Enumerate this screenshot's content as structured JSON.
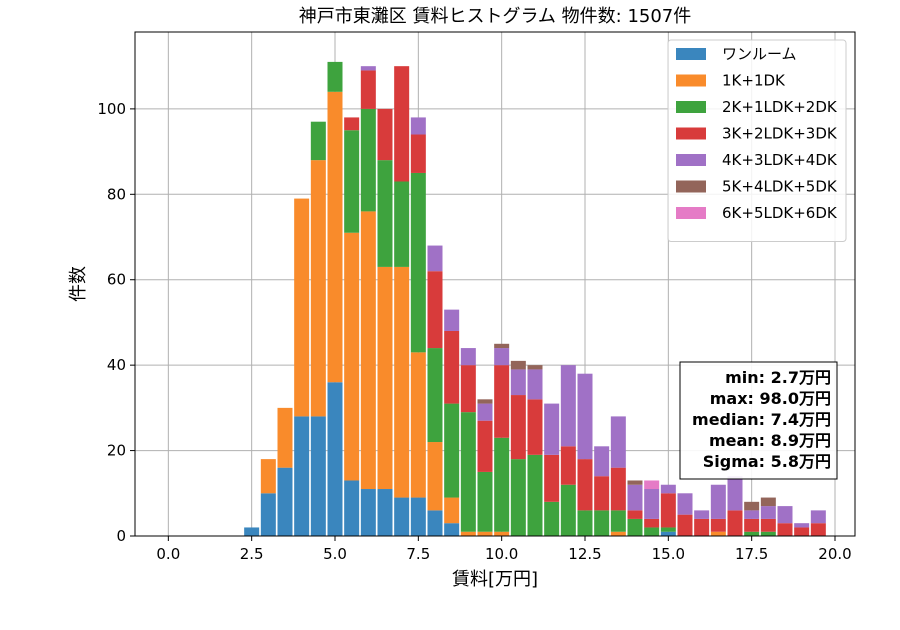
{
  "chart_data": {
    "type": "bar",
    "stacked": true,
    "title": "神戸市東灘区 賃料ヒストグラム  物件数: 1507件",
    "xlabel": "賃料[万円]",
    "ylabel": "件数",
    "xlim": [
      -1.0,
      20.6
    ],
    "ylim": [
      0,
      118
    ],
    "xticks": [
      0.0,
      2.5,
      5.0,
      7.5,
      10.0,
      12.5,
      15.0,
      17.5,
      20.0
    ],
    "xtick_labels": [
      "0.0",
      "2.5",
      "5.0",
      "7.5",
      "10.0",
      "12.5",
      "15.0",
      "17.5",
      "20.0"
    ],
    "yticks": [
      0,
      20,
      40,
      60,
      80,
      100
    ],
    "ytick_labels": [
      "0",
      "20",
      "40",
      "60",
      "80",
      "100"
    ],
    "grid": true,
    "legend_position": "top-right",
    "bin_width": 0.5,
    "bar_width": 0.45,
    "x": [
      2.5,
      3.0,
      3.5,
      4.0,
      4.5,
      5.0,
      5.5,
      6.0,
      6.5,
      7.0,
      7.5,
      8.0,
      8.5,
      9.0,
      9.5,
      10.0,
      10.5,
      11.0,
      11.5,
      12.0,
      12.5,
      13.0,
      13.5,
      14.0,
      14.5,
      15.0,
      15.5,
      16.0,
      16.5,
      17.0,
      17.5,
      18.0,
      18.5,
      19.0,
      19.5
    ],
    "series": [
      {
        "name": "ワンルーム",
        "color": "#3a86be",
        "values": [
          2,
          10,
          16,
          28,
          28,
          36,
          13,
          11,
          11,
          9,
          9,
          6,
          3,
          0,
          0,
          0,
          0,
          0,
          0,
          0,
          0,
          0,
          0,
          0,
          0,
          1,
          0,
          0,
          0,
          0,
          0,
          0,
          0,
          0,
          0
        ]
      },
      {
        "name": "1K+1DK",
        "color": "#f98b2b",
        "values": [
          0,
          8,
          14,
          51,
          60,
          68,
          58,
          65,
          52,
          54,
          34,
          16,
          6,
          1,
          1,
          1,
          0,
          0,
          0,
          0,
          0,
          0,
          1,
          0,
          0,
          0,
          0,
          0,
          1,
          0,
          0,
          0,
          0,
          0,
          0
        ]
      },
      {
        "name": "2K+1LDK+2DK",
        "color": "#3ea33e",
        "values": [
          0,
          0,
          0,
          0,
          9,
          7,
          24,
          24,
          25,
          20,
          42,
          22,
          22,
          28,
          14,
          22,
          18,
          19,
          8,
          12,
          6,
          6,
          5,
          4,
          2,
          1,
          0,
          0,
          0,
          0,
          1,
          1,
          0,
          0,
          0
        ]
      },
      {
        "name": "3K+2LDK+3DK",
        "color": "#d83b3b",
        "values": [
          0,
          0,
          0,
          0,
          0,
          0,
          3,
          9,
          12,
          27,
          9,
          18,
          17,
          11,
          12,
          17,
          15,
          13,
          11,
          9,
          12,
          8,
          10,
          2,
          2,
          8,
          5,
          4,
          3,
          6,
          3,
          3,
          3,
          2,
          3
        ]
      },
      {
        "name": "4K+3LDK+4DK",
        "color": "#a071c6",
        "values": [
          0,
          0,
          0,
          0,
          0,
          0,
          0,
          1,
          0,
          0,
          4,
          6,
          5,
          4,
          4,
          4,
          6,
          7,
          12,
          19,
          20,
          7,
          12,
          6,
          7,
          2,
          5,
          2,
          8,
          8,
          2,
          3,
          4,
          1,
          3
        ]
      },
      {
        "name": "5K+4LDK+5DK",
        "color": "#93655a",
        "values": [
          0,
          0,
          0,
          0,
          0,
          0,
          0,
          0,
          0,
          0,
          0,
          0,
          0,
          0,
          1,
          1,
          2,
          1,
          0,
          0,
          0,
          0,
          0,
          1,
          0,
          0,
          0,
          0,
          0,
          0,
          2,
          2,
          0,
          0,
          0
        ]
      },
      {
        "name": "6K+5LDK+6DK",
        "color": "#e57bc6",
        "values": [
          0,
          0,
          0,
          0,
          0,
          0,
          0,
          0,
          0,
          0,
          0,
          0,
          0,
          0,
          0,
          0,
          0,
          0,
          0,
          0,
          0,
          0,
          0,
          0,
          2,
          0,
          0,
          0,
          0,
          0,
          0,
          0,
          0,
          0,
          0
        ]
      }
    ],
    "stats": [
      "min: 2.7万円",
      "max: 98.0万円",
      "median: 7.4万円",
      "mean: 8.9万円",
      "Sigma: 5.8万円"
    ]
  }
}
